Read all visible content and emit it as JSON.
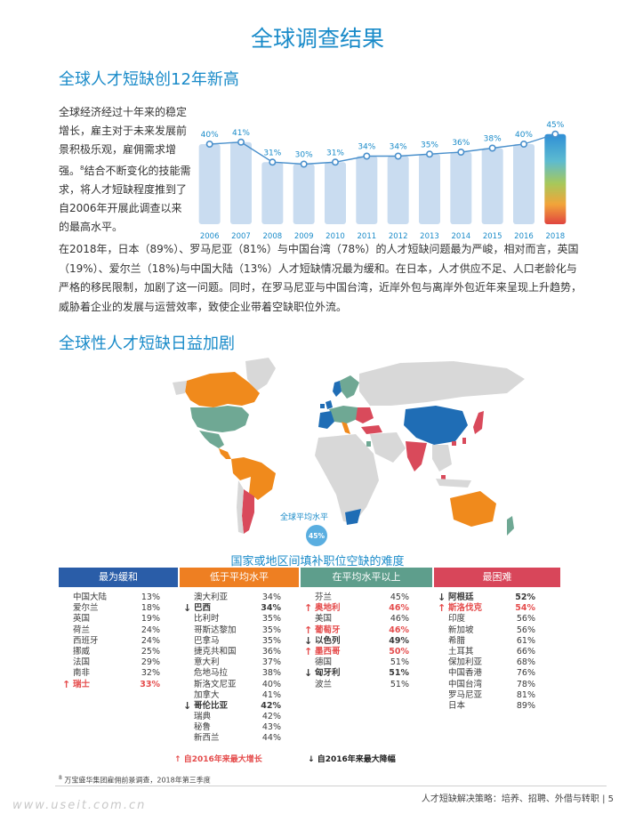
{
  "page_title": "全球调查结果",
  "section1": {
    "title": "全球人才短缺创12年新高",
    "intro_text": "全球经济经过十年来的稳定增长，雇主对于未来发展前景积极乐观，雇佣需求增强。",
    "intro_superscript": "8",
    "intro_text2": "结合不断变化的技能需求，将人才短缺程度推到了自2006年开展此调查以来的最高水平。",
    "body_paragraph": "在2018年，日本（89%）、罗马尼亚（81%）与中国台湾（78%）的人才短缺问题最为严峻，相对而言，英国（19%）、爱尔兰（18%)与中国大陆（13%）人才短缺情况最为缓和。在日本，人才供应不足、人口老龄化与严格的移民限制，加剧了这一问题。同时，在罗马尼亚与中国台湾，近岸外包与离岸外包近年来呈现上升趋势，威胁着企业的发展与运营效率，致使企业带着空缺职位外流。"
  },
  "chart_data": {
    "type": "bar",
    "categories": [
      "2006",
      "2007",
      "2008",
      "2009",
      "2010",
      "2011",
      "2012",
      "2013",
      "2014",
      "2015",
      "2016",
      "2018"
    ],
    "values": [
      40,
      41,
      31,
      30,
      31,
      34,
      34,
      35,
      36,
      38,
      40,
      45
    ],
    "value_labels": [
      "40%",
      "41%",
      "31%",
      "30%",
      "31%",
      "34%",
      "34%",
      "35%",
      "36%",
      "38%",
      "40%",
      "45%"
    ],
    "overlay": "line",
    "bar_color": "#c9dcf0",
    "line_color": "#4a90cc",
    "highlight_gradient": [
      "#2f8fd6",
      "#5dbbd0",
      "#a8c85a",
      "#f2a43a",
      "#e0453f"
    ],
    "title": "",
    "xlabel": "",
    "ylabel": "",
    "grid": false
  },
  "section2": {
    "title": "全球性人才短缺日益加剧",
    "map_avg_label": "全球平均水平",
    "map_avg_value": "45%",
    "map_caption": "国家或地区间填补职位空缺的难度",
    "map_colors": {
      "mild": "#1f6db5",
      "below_avg": "#f08a1c",
      "above_avg": "#6fa894",
      "hardest": "#d94a5b",
      "no_data": "#d8d8d8"
    }
  },
  "table": {
    "columns": [
      {
        "header": "最为缓和",
        "color": "#2a5da8",
        "rows": [
          {
            "name": "中国大陆",
            "value": "13%"
          },
          {
            "name": "爱尔兰",
            "value": "18%"
          },
          {
            "name": "英国",
            "value": "19%"
          },
          {
            "name": "荷兰",
            "value": "24%"
          },
          {
            "name": "西班牙",
            "value": "24%"
          },
          {
            "name": "挪威",
            "value": "25%"
          },
          {
            "name": "法国",
            "value": "29%"
          },
          {
            "name": "南非",
            "value": "32%"
          },
          {
            "name": "瑞士",
            "value": "33%",
            "arrow": "↑",
            "trend": "up"
          }
        ]
      },
      {
        "header": "低于平均水平",
        "color": "#ee7f22",
        "rows": [
          {
            "name": "澳大利亚",
            "value": "34%"
          },
          {
            "name": "巴西",
            "value": "34%",
            "arrow": "↓",
            "trend": "down"
          },
          {
            "name": "比利时",
            "value": "35%"
          },
          {
            "name": "哥斯达黎加",
            "value": "35%"
          },
          {
            "name": "巴拿马",
            "value": "35%"
          },
          {
            "name": "捷克共和国",
            "value": "36%"
          },
          {
            "name": "意大利",
            "value": "37%"
          },
          {
            "name": "危地马拉",
            "value": "38%"
          },
          {
            "name": "斯洛文尼亚",
            "value": "40%"
          },
          {
            "name": "加拿大",
            "value": "41%"
          },
          {
            "name": "哥伦比亚",
            "value": "42%",
            "arrow": "↓",
            "trend": "down"
          },
          {
            "name": "瑞典",
            "value": "42%"
          },
          {
            "name": "秘鲁",
            "value": "43%"
          },
          {
            "name": "新西兰",
            "value": "44%"
          }
        ]
      },
      {
        "header": "在平均水平以上",
        "color": "#5e9e8c",
        "rows": [
          {
            "name": "芬兰",
            "value": "45%"
          },
          {
            "name": "奥地利",
            "value": "46%",
            "arrow": "↑",
            "trend": "up"
          },
          {
            "name": "美国",
            "value": "46%"
          },
          {
            "name": "葡萄牙",
            "value": "46%",
            "arrow": "↑",
            "trend": "up"
          },
          {
            "name": "以色列",
            "value": "49%",
            "arrow": "↓",
            "trend": "down"
          },
          {
            "name": "墨西哥",
            "value": "50%",
            "arrow": "↑",
            "trend": "up"
          },
          {
            "name": "德国",
            "value": "51%"
          },
          {
            "name": "匈牙利",
            "value": "51%",
            "arrow": "↓",
            "trend": "down"
          },
          {
            "name": "波兰",
            "value": "51%"
          }
        ]
      },
      {
        "header": "最困难",
        "color": "#d8465a",
        "rows": [
          {
            "name": "阿根廷",
            "value": "52%",
            "arrow": "↓",
            "trend": "down"
          },
          {
            "name": "斯洛伐克",
            "value": "54%",
            "arrow": "↑",
            "trend": "up"
          },
          {
            "name": "印度",
            "value": "56%"
          },
          {
            "name": "新加坡",
            "value": "56%"
          },
          {
            "name": "希腊",
            "value": "61%"
          },
          {
            "name": "土耳其",
            "value": "66%"
          },
          {
            "name": "保加利亚",
            "value": "68%"
          },
          {
            "name": "中国香港",
            "value": "76%"
          },
          {
            "name": "中国台湾",
            "value": "78%"
          },
          {
            "name": "罗马尼亚",
            "value": "81%"
          },
          {
            "name": "日本",
            "value": "89%"
          }
        ]
      }
    ],
    "legend_up_arrow": "↑",
    "legend_up": "自2016年来最大增长",
    "legend_down_arrow": "↓",
    "legend_down": "自2016年来最大降幅"
  },
  "footnote_number": "8",
  "footnote": "万宝盛华集团雇佣前景调查，2018年第三季度",
  "footer": "人才短缺解决策略：培养、招聘、外借与转职  |  5",
  "watermark": "www.useit.com.cn"
}
